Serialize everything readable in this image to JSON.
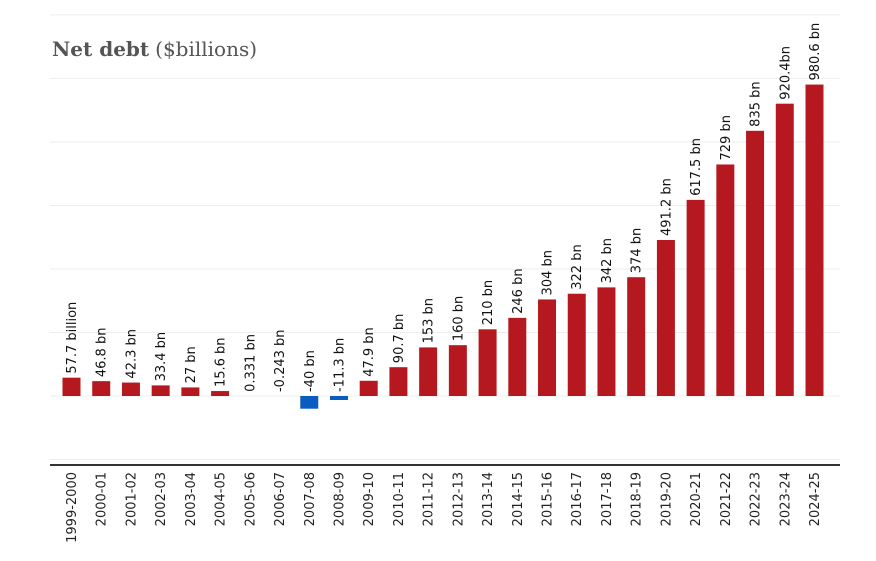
{
  "chart_data": {
    "type": "bar",
    "title": "Net debt",
    "subtitle": "($billions)",
    "xlabel": "",
    "ylabel": "",
    "ylim": [
      -100,
      1000
    ],
    "grid": true,
    "colors": {
      "positive": "#b5191f",
      "negative": "#0b5cbf"
    },
    "categories": [
      "1999-2000",
      "2000-01",
      "2001-02",
      "2002-03",
      "2003-04",
      "2004-05",
      "2005-06",
      "2006-07",
      "2007-08",
      "2008-09",
      "2009-10",
      "2010-11",
      "2011-12",
      "2012-13",
      "2013-14",
      "2014-15",
      "2015-16",
      "2016-17",
      "2017-18",
      "2018-19",
      "2019-20",
      "2020-21",
      "2021-22",
      "2022-23",
      "2023-24",
      "2024-25"
    ],
    "values": [
      57.7,
      46.8,
      42.3,
      33.4,
      27,
      15.6,
      0.331,
      -0.243,
      -40,
      -11.3,
      47.9,
      90.7,
      153,
      160,
      210,
      246,
      304,
      322,
      342,
      374,
      491.2,
      617.5,
      729,
      835,
      920.4,
      980.6
    ],
    "data_labels": [
      "57.7 billion",
      "46.8 bn",
      "42.3 bn",
      "33.4 bn",
      "27 bn",
      "15.6 bn",
      "0.331 bn",
      "-0.243 bn",
      "-40 bn",
      "-11.3 bn",
      "47.9 bn",
      "90.7 bn",
      "153 bn",
      "160 bn",
      "210 bn",
      "246 bn",
      "304 bn",
      "322 bn",
      "342 bn",
      "374 bn",
      "491.2 bn",
      "617.5 bn",
      "729 bn",
      "835 bn",
      "920.4bn",
      "980.6 bn"
    ]
  }
}
